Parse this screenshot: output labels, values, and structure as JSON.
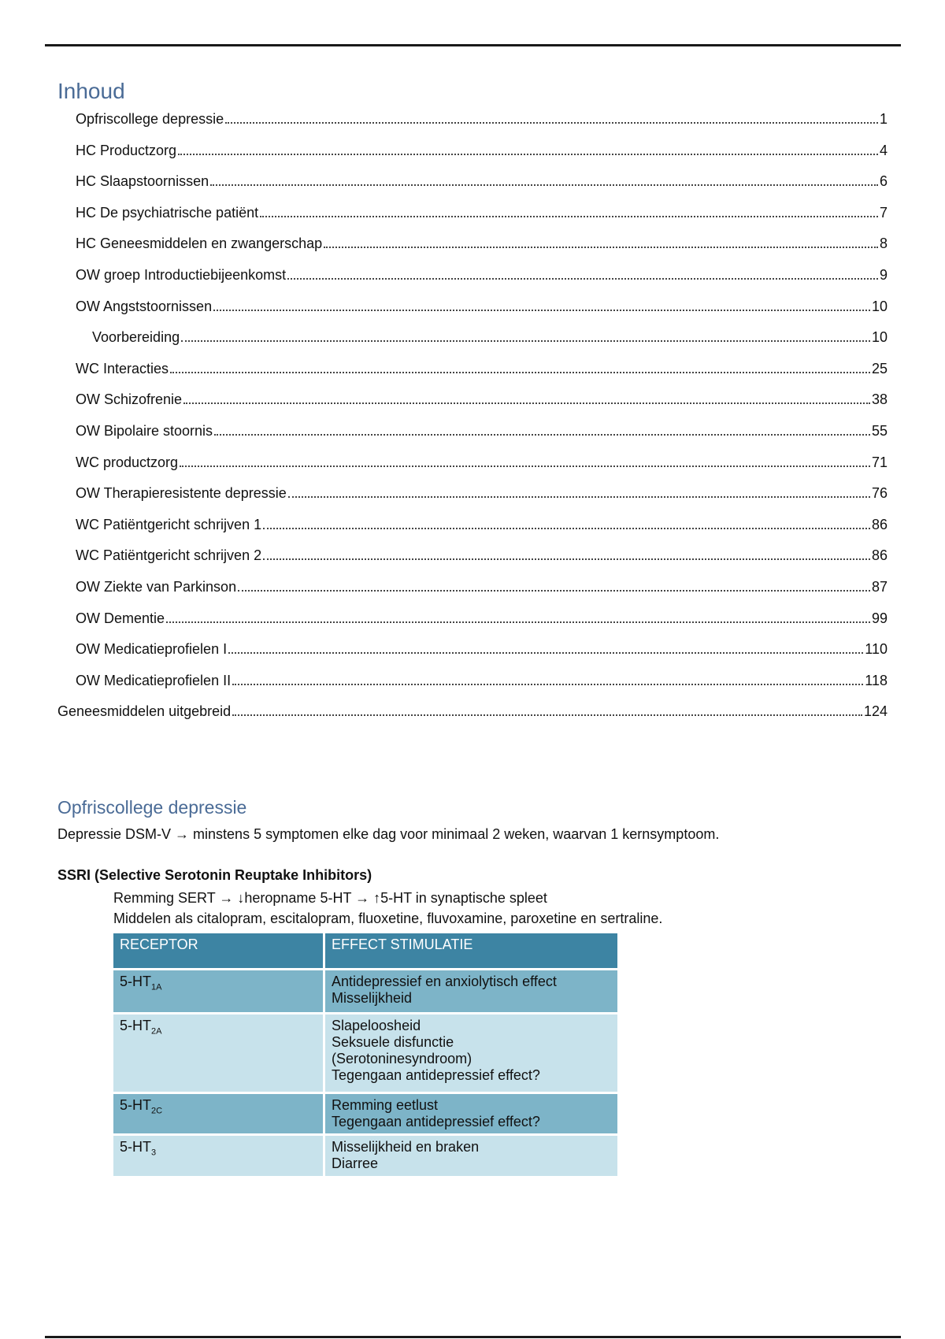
{
  "toc": {
    "title": "Inhoud",
    "entries": [
      {
        "label": "Opfriscollege depressie",
        "page": "1",
        "level": 2
      },
      {
        "label": "HC Productzorg",
        "page": "4",
        "level": 2
      },
      {
        "label": "HC Slaapstoornissen",
        "page": "6",
        "level": 2
      },
      {
        "label": "HC De psychiatrische patiënt",
        "page": "7",
        "level": 2
      },
      {
        "label": "HC Geneesmiddelen en zwangerschap",
        "page": "8",
        "level": 2
      },
      {
        "label": "OW groep Introductiebijeenkomst",
        "page": "9",
        "level": 2
      },
      {
        "label": "OW Angststoornissen",
        "page": "10",
        "level": 2
      },
      {
        "label": "Voorbereiding",
        "page": "10",
        "level": 3
      },
      {
        "label": "WC Interacties",
        "page": "25",
        "level": 2
      },
      {
        "label": "OW Schizofrenie",
        "page": "38",
        "level": 2
      },
      {
        "label": "OW Bipolaire stoornis",
        "page": "55",
        "level": 2
      },
      {
        "label": "WC productzorg",
        "page": "71",
        "level": 2
      },
      {
        "label": "OW Therapieresistente depressie",
        "page": "76",
        "level": 2
      },
      {
        "label": "WC Patiëntgericht schrijven 1",
        "page": "86",
        "level": 2
      },
      {
        "label": "WC Patiëntgericht schrijven 2",
        "page": "86",
        "level": 2
      },
      {
        "label": "OW Ziekte van Parkinson",
        "page": "87",
        "level": 2
      },
      {
        "label": "OW Dementie",
        "page": "99",
        "level": 2
      },
      {
        "label": "OW Medicatieprofielen I",
        "page": "110",
        "level": 2
      },
      {
        "label": "OW Medicatieprofielen II",
        "page": "118",
        "level": 2
      },
      {
        "label": "Geneesmiddelen uitgebreid",
        "page": "124",
        "level": 1
      }
    ]
  },
  "section": {
    "title": "Opfriscollege depressie",
    "intro": "Depressie DSM-V → minstens 5 symptomen elke dag voor minimaal 2 weken, waarvan 1 kernsymptoom.",
    "ssri_heading": "SSRI  (Selective Serotonin Reuptake Inhibitors)",
    "mechanism": "Remming SERT → ↓heropname 5-HT → ↑5-HT in synaptische spleet",
    "agents": "Middelen als citalopram, escitalopram, fluoxetine, fluvoxamine, paroxetine en sertraline."
  },
  "table": {
    "headers": [
      "RECEPTOR",
      "EFFECT STIMULATIE"
    ],
    "rows": [
      {
        "receptor": "5-HT",
        "sub": "1A",
        "effects": [
          "Antidepressief en anxiolytisch effect",
          "Misselijkheid"
        ]
      },
      {
        "receptor": "5-HT",
        "sub": "2A",
        "effects": [
          "Slapeloosheid",
          "Seksuele disfunctie",
          "(Serotoninesyndroom)",
          "Tegengaan antidepressief effect?"
        ]
      },
      {
        "receptor": "5-HT",
        "sub": "2C",
        "effects": [
          "Remming eetlust",
          "Tegengaan antidepressief effect?"
        ]
      },
      {
        "receptor": "5-HT",
        "sub": "3",
        "effects": [
          "Misselijkheid en braken",
          "Diarree"
        ]
      }
    ]
  },
  "colors": {
    "heading": "#4a6b96",
    "table_header": "#3d84a3",
    "row_dark": "#7db4c8",
    "row_light": "#c7e2eb"
  }
}
